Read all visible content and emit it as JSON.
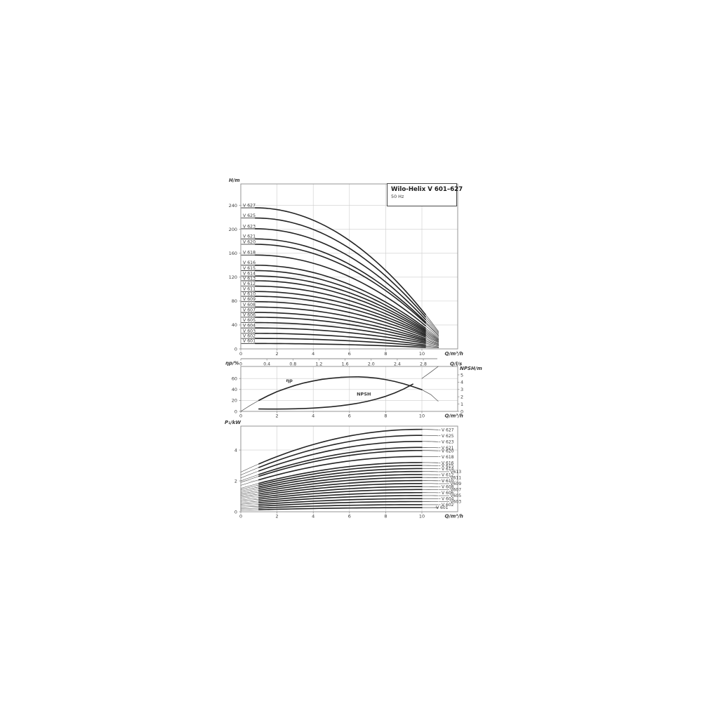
{
  "title_box": {
    "title": "Wilo-Helix V 601–627",
    "subtitle": "50 Hz"
  },
  "colors": {
    "background": "#ffffff",
    "curve": "#232323",
    "curve_thin": "#404040",
    "grid": "#cccccc",
    "axis": "#8a8a8a",
    "text": "#3a3a3a",
    "title": "#1a1a1a"
  },
  "chart_data": [
    {
      "id": "head_flow",
      "type": "line",
      "title": "Wilo-Helix V 601–627, 50 Hz",
      "ylabel": "H/m",
      "xlabel": "Q/m³/h",
      "xlabel2": "Q/l/s",
      "xlim": [
        0,
        11.98
      ],
      "ylim": [
        0,
        276
      ],
      "xticks": [
        0,
        2,
        4,
        6,
        8,
        10
      ],
      "yticks": [
        0,
        40,
        80,
        120,
        160,
        200,
        240
      ],
      "x2ticks": [
        "0",
        "0.4",
        "0.8",
        "1.2",
        "1.6",
        "2.0",
        "2.4",
        "2.8"
      ],
      "grid": true,
      "curve_q_start": 0.8,
      "curve_q_bold_end": 10.2,
      "curve_q_end": 10.92,
      "series": [
        {
          "label": "V 627",
          "shutoff_head_m": 236,
          "end_head_m": 29
        },
        {
          "label": "V 625",
          "shutoff_head_m": 219,
          "end_head_m": 27
        },
        {
          "label": "V 623",
          "shutoff_head_m": 201,
          "end_head_m": 25
        },
        {
          "label": "V 621",
          "shutoff_head_m": 184,
          "end_head_m": 23
        },
        {
          "label": "V 620",
          "shutoff_head_m": 175,
          "end_head_m": 22
        },
        {
          "label": "V 618",
          "shutoff_head_m": 157,
          "end_head_m": 20
        },
        {
          "label": "V 616",
          "shutoff_head_m": 140,
          "end_head_m": 18
        },
        {
          "label": "V 615",
          "shutoff_head_m": 131,
          "end_head_m": 16.5
        },
        {
          "label": "V 614",
          "shutoff_head_m": 122,
          "end_head_m": 15.5
        },
        {
          "label": "V 613",
          "shutoff_head_m": 114,
          "end_head_m": 14.5
        },
        {
          "label": "V 612",
          "shutoff_head_m": 105,
          "end_head_m": 13.5
        },
        {
          "label": "V 611",
          "shutoff_head_m": 96,
          "end_head_m": 12.5
        },
        {
          "label": "V 610",
          "shutoff_head_m": 88,
          "end_head_m": 11.5
        },
        {
          "label": "V 609",
          "shutoff_head_m": 79,
          "end_head_m": 10.5
        },
        {
          "label": "V 608",
          "shutoff_head_m": 70,
          "end_head_m": 9
        },
        {
          "label": "V 607",
          "shutoff_head_m": 61,
          "end_head_m": 8
        },
        {
          "label": "V 606",
          "shutoff_head_m": 53,
          "end_head_m": 7
        },
        {
          "label": "V 605",
          "shutoff_head_m": 44,
          "end_head_m": 6
        },
        {
          "label": "V 604",
          "shutoff_head_m": 35,
          "end_head_m": 5
        },
        {
          "label": "V 603",
          "shutoff_head_m": 26,
          "end_head_m": 3.5
        },
        {
          "label": "V 602",
          "shutoff_head_m": 17.5,
          "end_head_m": 2.5
        },
        {
          "label": "V 601",
          "shutoff_head_m": 9,
          "end_head_m": 1.5
        }
      ]
    },
    {
      "id": "efficiency_npsh",
      "type": "line",
      "ylabel_left": "ηp/%",
      "ylabel_right": "NPSH/m",
      "xlabel": "Q/m³/h",
      "xlim": [
        0,
        11.98
      ],
      "ylim_left": [
        0,
        82
      ],
      "ylim_right": [
        0,
        6.15
      ],
      "xticks": [
        0,
        2,
        4,
        6,
        8,
        10
      ],
      "yticks_left": [
        0,
        20,
        40,
        60
      ],
      "yticks_right": [
        0,
        1,
        2,
        3,
        4,
        5
      ],
      "grid": true,
      "series": [
        {
          "name": "ηp",
          "axis": "left",
          "label_at": [
            2.5,
            54
          ],
          "bold_range": [
            1.0,
            10.0
          ],
          "points": [
            [
              0,
              0
            ],
            [
              0.5,
              10.5
            ],
            [
              1,
              20
            ],
            [
              1.5,
              28.5
            ],
            [
              2,
              36
            ],
            [
              2.5,
              42
            ],
            [
              3,
              47.5
            ],
            [
              3.5,
              52
            ],
            [
              4,
              55.5
            ],
            [
              4.5,
              58.5
            ],
            [
              5,
              60.5
            ],
            [
              5.5,
              62
            ],
            [
              6,
              62.8
            ],
            [
              6.5,
              63
            ],
            [
              7,
              62.2
            ],
            [
              7.5,
              60.6
            ],
            [
              8,
              58
            ],
            [
              8.5,
              54.6
            ],
            [
              9,
              50.3
            ],
            [
              9.5,
              45.2
            ],
            [
              10,
              39.5
            ],
            [
              10.5,
              30.5
            ],
            [
              10.9,
              18.5
            ]
          ]
        },
        {
          "name": "NPSH",
          "axis": "right",
          "label_at": [
            6.4,
            2.15
          ],
          "bold_range": [
            1.0,
            9.6
          ],
          "points": [
            [
              1,
              0.33
            ],
            [
              1.5,
              0.32
            ],
            [
              2,
              0.32
            ],
            [
              2.5,
              0.33
            ],
            [
              3,
              0.35
            ],
            [
              3.5,
              0.39
            ],
            [
              4,
              0.45
            ],
            [
              4.5,
              0.53
            ],
            [
              5,
              0.63
            ],
            [
              5.5,
              0.76
            ],
            [
              6,
              0.93
            ],
            [
              6.5,
              1.13
            ],
            [
              7,
              1.38
            ],
            [
              7.5,
              1.69
            ],
            [
              8,
              2.06
            ],
            [
              8.5,
              2.52
            ],
            [
              9,
              3.07
            ],
            [
              9.5,
              3.73
            ],
            [
              10,
              4.5
            ],
            [
              10.5,
              5.4
            ],
            [
              10.9,
              6.15
            ]
          ]
        }
      ]
    },
    {
      "id": "power",
      "type": "line",
      "ylabel": "P₁/kW",
      "xlabel": "Q/m³/h",
      "xlim": [
        0,
        11.98
      ],
      "ylim": [
        0,
        5.55
      ],
      "xticks": [
        0,
        2,
        4,
        6,
        8,
        10
      ],
      "yticks": [
        0,
        2,
        4
      ],
      "grid": true,
      "curve_q_bold_start": 1.0,
      "curve_q_bold_end": 10.0,
      "curve_q_end": 10.9,
      "peak_q": 9.9,
      "series": [
        {
          "label": "V 627",
          "p_start_kw": 2.57,
          "p_max_kw": 5.34,
          "col": "main"
        },
        {
          "label": "V 625",
          "p_start_kw": 2.38,
          "p_max_kw": 4.95,
          "col": "main"
        },
        {
          "label": "V 623",
          "p_start_kw": 2.19,
          "p_max_kw": 4.56,
          "col": "main"
        },
        {
          "label": "V 621",
          "p_start_kw": 2.0,
          "p_max_kw": 4.17,
          "col": "main"
        },
        {
          "label": "V 620",
          "p_start_kw": 1.9,
          "p_max_kw": 3.97,
          "col": "main"
        },
        {
          "label": "V 618",
          "p_start_kw": 1.71,
          "p_max_kw": 3.58,
          "col": "main"
        },
        {
          "label": "V 616",
          "p_start_kw": 1.52,
          "p_max_kw": 3.19,
          "col": "main"
        },
        {
          "label": "V 615",
          "p_start_kw": 1.43,
          "p_max_kw": 3.0,
          "col": "main"
        },
        {
          "label": "V 614",
          "p_start_kw": 1.33,
          "p_max_kw": 2.8,
          "col": "main"
        },
        {
          "label": "V613",
          "p_start_kw": 1.24,
          "p_max_kw": 2.61,
          "col": "right"
        },
        {
          "label": "V 612",
          "p_start_kw": 1.14,
          "p_max_kw": 2.41,
          "col": "main"
        },
        {
          "label": "V611",
          "p_start_kw": 1.05,
          "p_max_kw": 2.22,
          "col": "right"
        },
        {
          "label": "V 610",
          "p_start_kw": 0.95,
          "p_max_kw": 2.02,
          "col": "main"
        },
        {
          "label": "V609",
          "p_start_kw": 0.86,
          "p_max_kw": 1.83,
          "col": "right"
        },
        {
          "label": "V 608",
          "p_start_kw": 0.76,
          "p_max_kw": 1.63,
          "col": "main"
        },
        {
          "label": "V607",
          "p_start_kw": 0.67,
          "p_max_kw": 1.44,
          "col": "right"
        },
        {
          "label": "V 606",
          "p_start_kw": 0.57,
          "p_max_kw": 1.24,
          "col": "main"
        },
        {
          "label": "V605",
          "p_start_kw": 0.48,
          "p_max_kw": 1.05,
          "col": "right"
        },
        {
          "label": "V 604",
          "p_start_kw": 0.38,
          "p_max_kw": 0.85,
          "col": "main"
        },
        {
          "label": "V603",
          "p_start_kw": 0.29,
          "p_max_kw": 0.66,
          "col": "right"
        },
        {
          "label": "V 602",
          "p_start_kw": 0.19,
          "p_max_kw": 0.46,
          "col": "main"
        },
        {
          "label": "V 601",
          "p_start_kw": 0.1,
          "p_max_kw": 0.27,
          "col": "left"
        }
      ]
    }
  ]
}
